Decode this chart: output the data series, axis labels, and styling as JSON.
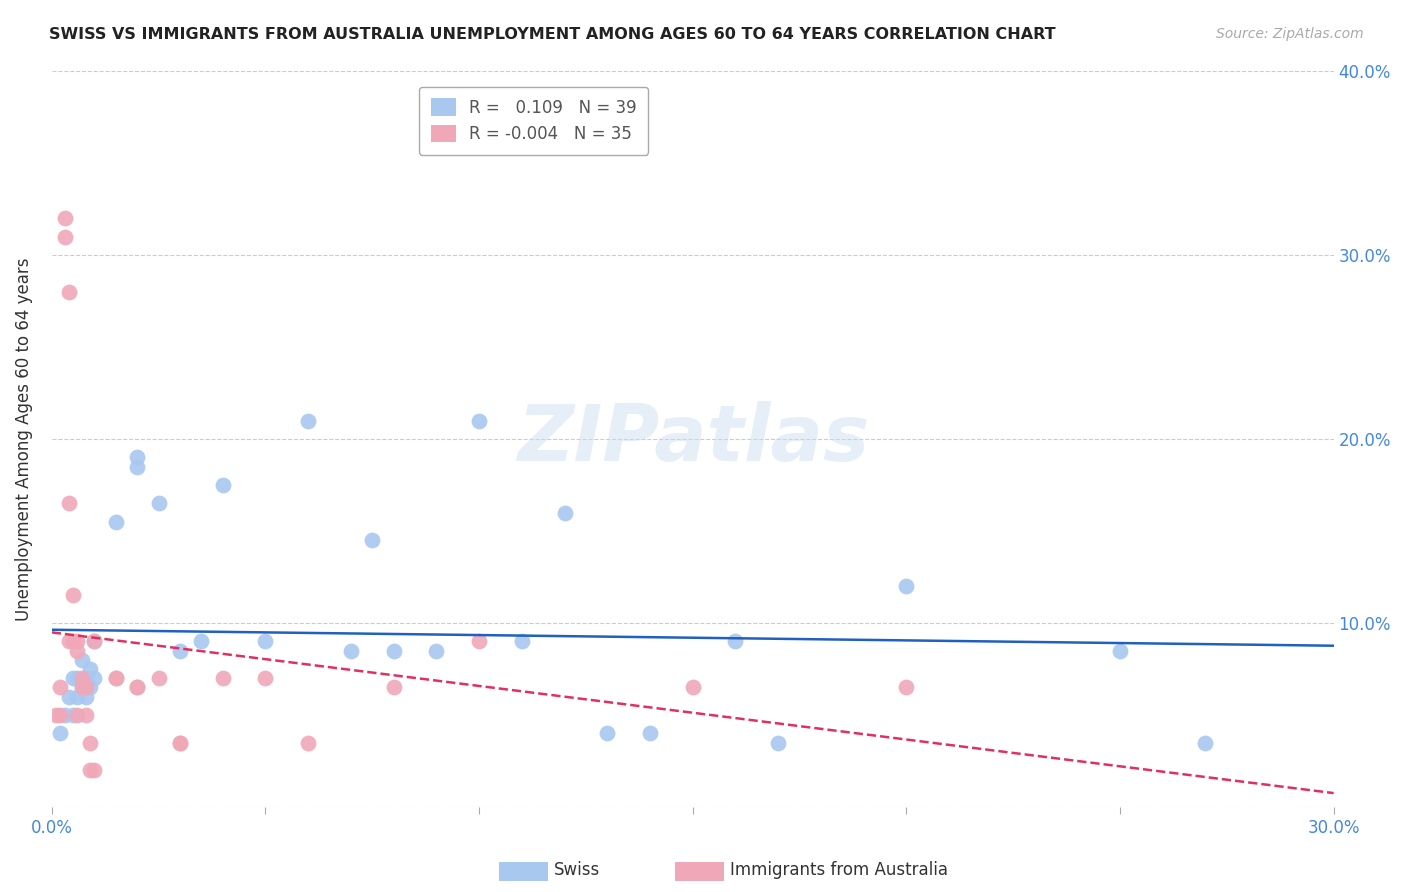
{
  "title": "SWISS VS IMMIGRANTS FROM AUSTRALIA UNEMPLOYMENT AMONG AGES 60 TO 64 YEARS CORRELATION CHART",
  "source": "Source: ZipAtlas.com",
  "ylabel": "Unemployment Among Ages 60 to 64 years",
  "xlim": [
    0.0,
    0.3
  ],
  "ylim": [
    0.0,
    0.4
  ],
  "xticks": [
    0.0,
    0.05,
    0.1,
    0.15,
    0.2,
    0.25,
    0.3
  ],
  "yticks": [
    0.0,
    0.1,
    0.2,
    0.3,
    0.4
  ],
  "swiss_color": "#a8c8f0",
  "immigrants_color": "#f0a8b8",
  "swiss_line_color": "#2060c0",
  "immigrants_line_color": "#e03060",
  "legend_R_swiss": "0.109",
  "legend_N_swiss": "39",
  "legend_R_immigrants": "-0.004",
  "legend_N_immigrants": "35",
  "watermark": "ZIPatlas",
  "swiss_x": [
    0.002,
    0.003,
    0.004,
    0.005,
    0.005,
    0.006,
    0.006,
    0.007,
    0.007,
    0.008,
    0.008,
    0.008,
    0.009,
    0.009,
    0.01,
    0.01,
    0.015,
    0.02,
    0.02,
    0.025,
    0.03,
    0.035,
    0.04,
    0.05,
    0.06,
    0.07,
    0.075,
    0.08,
    0.09,
    0.1,
    0.11,
    0.12,
    0.13,
    0.14,
    0.16,
    0.17,
    0.2,
    0.25,
    0.27
  ],
  "swiss_y": [
    0.04,
    0.05,
    0.06,
    0.05,
    0.07,
    0.06,
    0.07,
    0.065,
    0.08,
    0.06,
    0.065,
    0.07,
    0.065,
    0.075,
    0.09,
    0.07,
    0.155,
    0.19,
    0.185,
    0.165,
    0.085,
    0.09,
    0.175,
    0.09,
    0.21,
    0.085,
    0.145,
    0.085,
    0.085,
    0.21,
    0.09,
    0.16,
    0.04,
    0.04,
    0.09,
    0.035,
    0.12,
    0.085,
    0.035
  ],
  "immigrants_x": [
    0.001,
    0.002,
    0.002,
    0.003,
    0.003,
    0.004,
    0.004,
    0.004,
    0.005,
    0.005,
    0.006,
    0.006,
    0.006,
    0.007,
    0.007,
    0.008,
    0.008,
    0.009,
    0.009,
    0.01,
    0.01,
    0.015,
    0.015,
    0.02,
    0.02,
    0.025,
    0.03,
    0.03,
    0.04,
    0.05,
    0.06,
    0.08,
    0.1,
    0.15,
    0.2
  ],
  "immigrants_y": [
    0.05,
    0.05,
    0.065,
    0.32,
    0.31,
    0.28,
    0.165,
    0.09,
    0.09,
    0.115,
    0.085,
    0.09,
    0.05,
    0.07,
    0.065,
    0.065,
    0.05,
    0.035,
    0.02,
    0.02,
    0.09,
    0.07,
    0.07,
    0.065,
    0.065,
    0.07,
    0.035,
    0.035,
    0.07,
    0.07,
    0.035,
    0.065,
    0.09,
    0.065,
    0.065
  ]
}
